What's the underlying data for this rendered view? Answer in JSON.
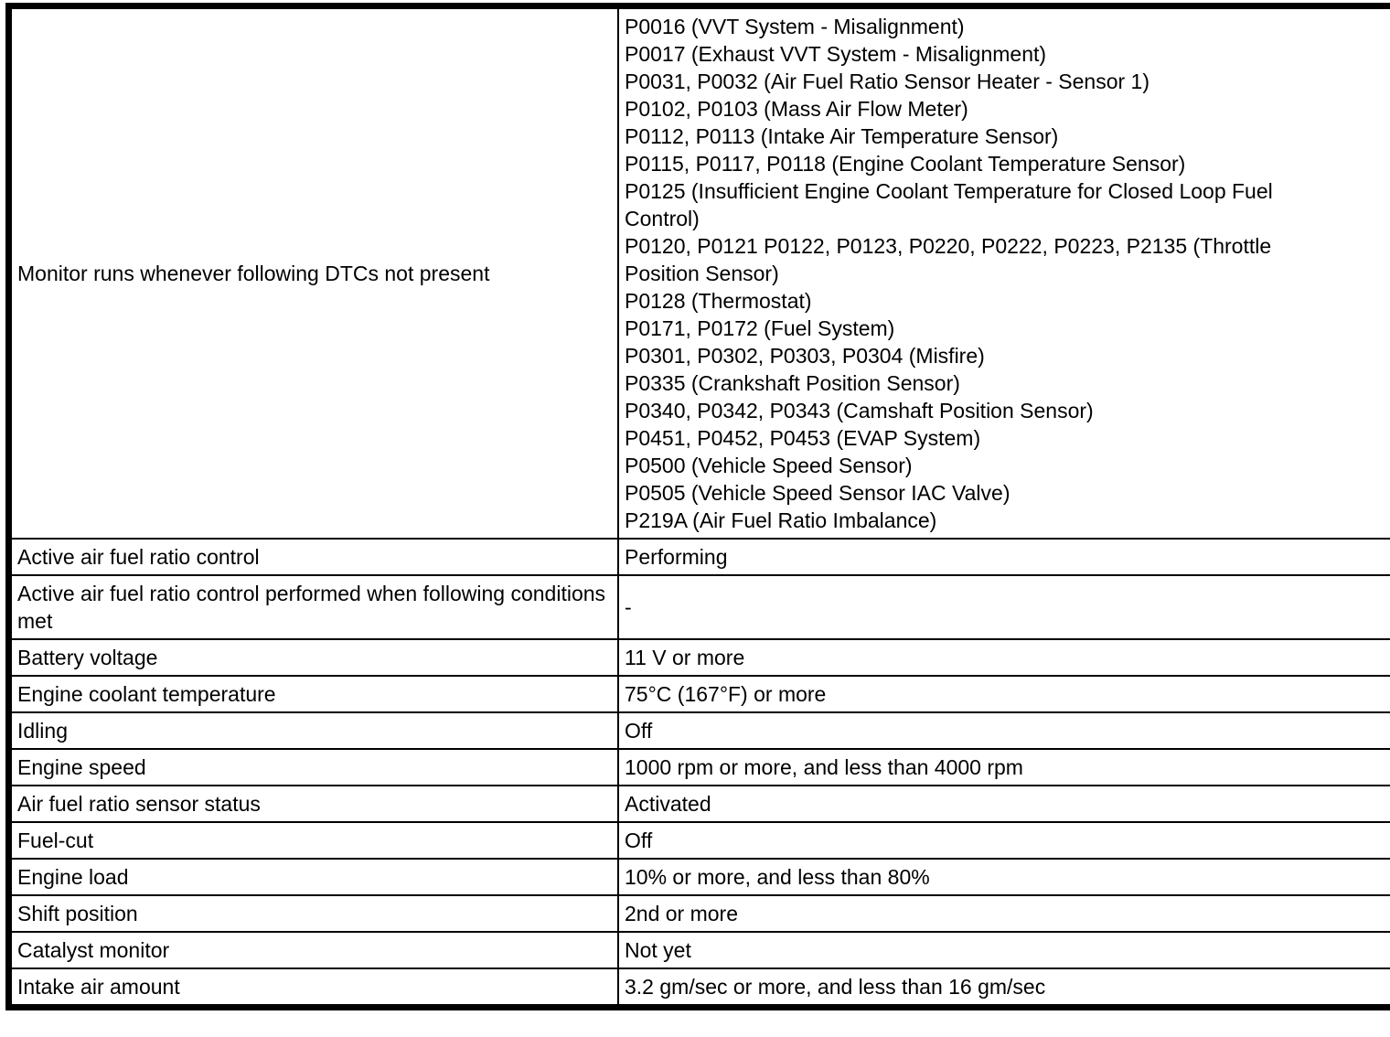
{
  "document": {
    "type": "specification-table",
    "colors": {
      "border": "#000000",
      "background": "#ffffff",
      "text": "#000000"
    },
    "table": {
      "rows": [
        {
          "label": "Monitor runs whenever following DTCs not present",
          "value_lines": [
            "P0016 (VVT System - Misalignment)",
            "P0017 (Exhaust VVT System - Misalignment)",
            "P0031, P0032 (Air Fuel Ratio Sensor Heater - Sensor 1)",
            "P0102, P0103 (Mass Air Flow Meter)",
            "P0112, P0113 (Intake Air Temperature Sensor)",
            "P0115, P0117, P0118 (Engine Coolant Temperature Sensor)",
            "P0125 (Insufficient Engine Coolant Temperature for Closed Loop Fuel",
            "Control)",
            "P0120, P0121 P0122, P0123, P0220, P0222, P0223, P2135 (Throttle",
            "Position Sensor)",
            "P0128 (Thermostat)",
            "P0171, P0172 (Fuel System)",
            "P0301, P0302, P0303, P0304 (Misfire)",
            "P0335 (Crankshaft Position Sensor)",
            "P0340, P0342, P0343 (Camshaft Position Sensor)",
            "P0451, P0452, P0453 (EVAP System)",
            "P0500 (Vehicle Speed Sensor)",
            "P0505 (Vehicle Speed Sensor IAC Valve)",
            "P219A (Air Fuel Ratio Imbalance)"
          ]
        },
        {
          "label": "Active air fuel ratio control",
          "value_lines": [
            "Performing"
          ]
        },
        {
          "label": "Active air fuel ratio control performed when following conditions met",
          "value_lines": [
            "-"
          ]
        },
        {
          "label": "Battery voltage",
          "value_lines": [
            "11 V or more"
          ]
        },
        {
          "label": "Engine coolant temperature",
          "value_lines": [
            "75°C (167°F) or more"
          ]
        },
        {
          "label": "Idling",
          "value_lines": [
            "Off"
          ]
        },
        {
          "label": "Engine speed",
          "value_lines": [
            "1000 rpm or more, and less than 4000 rpm"
          ]
        },
        {
          "label": "Air fuel ratio sensor status",
          "value_lines": [
            "Activated"
          ]
        },
        {
          "label": "Fuel-cut",
          "value_lines": [
            "Off"
          ]
        },
        {
          "label": "Engine load",
          "value_lines": [
            "10% or more, and less than 80%"
          ]
        },
        {
          "label": "Shift position",
          "value_lines": [
            "2nd or more"
          ]
        },
        {
          "label": "Catalyst monitor",
          "value_lines": [
            "Not yet"
          ]
        },
        {
          "label": "Intake air amount",
          "value_lines": [
            "3.2 gm/sec or more, and less than 16 gm/sec"
          ]
        }
      ]
    }
  }
}
